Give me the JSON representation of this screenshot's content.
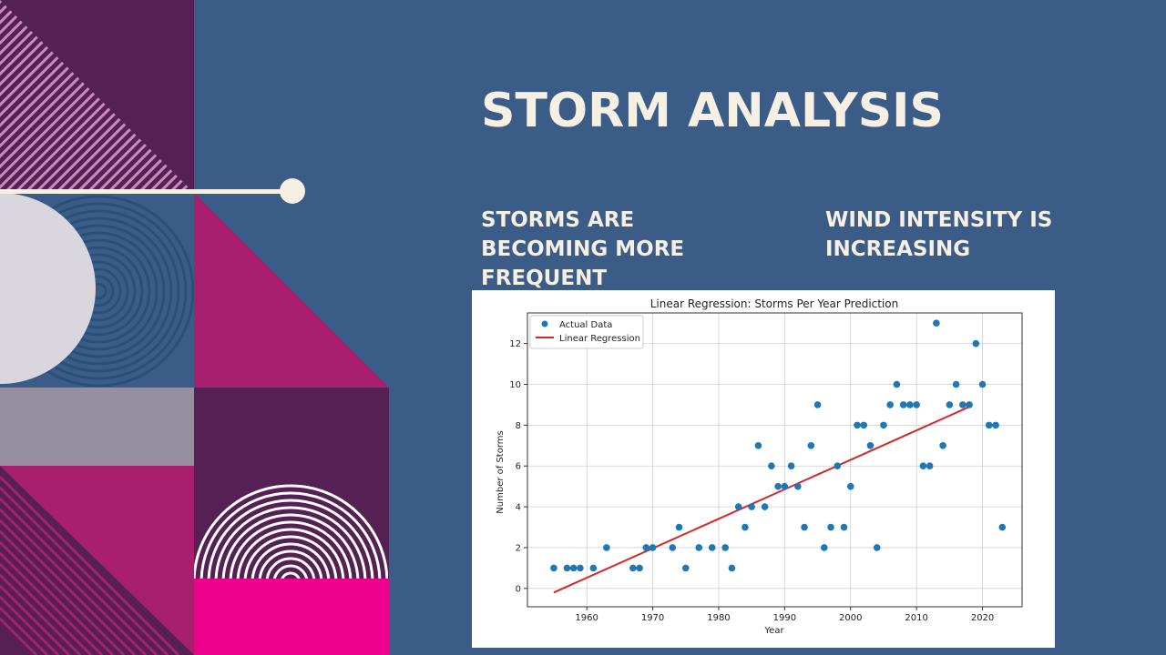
{
  "slide": {
    "title": "STORM ANALYSIS",
    "bullet_left": "STORMS ARE BECOMING MORE FREQUENT",
    "bullet_right": "WIND INTENSITY IS INCREASING"
  },
  "colors": {
    "background": "#3a5c87",
    "text": "#f6efe4",
    "points": "#1f77b4",
    "regression": "#d62728",
    "deco_purple": "#552054",
    "deco_magenta": "#a8206d",
    "deco_pink": "#ec008c",
    "deco_gray": "#968fa1",
    "deco_light": "#d9d6de"
  },
  "chart_data": {
    "type": "scatter",
    "title": "Linear Regression: Storms Per Year Prediction",
    "xlabel": "Year",
    "ylabel": "Number of Storms",
    "xlim": [
      1951,
      2026
    ],
    "ylim": [
      -0.9,
      13.5
    ],
    "xticks": [
      1960,
      1970,
      1980,
      1990,
      2000,
      2010,
      2020
    ],
    "yticks": [
      0,
      2,
      4,
      6,
      8,
      10,
      12
    ],
    "grid": true,
    "legend": {
      "placement": "top-left",
      "entries": [
        "Actual Data",
        "Linear Regression"
      ]
    },
    "series": [
      {
        "name": "Actual Data",
        "type": "scatter",
        "points": [
          [
            1955,
            1
          ],
          [
            1957,
            1
          ],
          [
            1958,
            1
          ],
          [
            1959,
            1
          ],
          [
            1961,
            1
          ],
          [
            1963,
            2
          ],
          [
            1967,
            1
          ],
          [
            1968,
            1
          ],
          [
            1969,
            2
          ],
          [
            1970,
            2
          ],
          [
            1973,
            2
          ],
          [
            1974,
            3
          ],
          [
            1975,
            1
          ],
          [
            1977,
            2
          ],
          [
            1979,
            2
          ],
          [
            1981,
            2
          ],
          [
            1982,
            1
          ],
          [
            1983,
            4
          ],
          [
            1984,
            3
          ],
          [
            1985,
            4
          ],
          [
            1986,
            7
          ],
          [
            1987,
            4
          ],
          [
            1988,
            6
          ],
          [
            1989,
            5
          ],
          [
            1990,
            5
          ],
          [
            1991,
            6
          ],
          [
            1992,
            5
          ],
          [
            1993,
            3
          ],
          [
            1994,
            7
          ],
          [
            1995,
            9
          ],
          [
            1996,
            2
          ],
          [
            1997,
            3
          ],
          [
            1998,
            6
          ],
          [
            1999,
            3
          ],
          [
            2000,
            5
          ],
          [
            2001,
            8
          ],
          [
            2002,
            8
          ],
          [
            2003,
            7
          ],
          [
            2004,
            2
          ],
          [
            2005,
            8
          ],
          [
            2006,
            9
          ],
          [
            2007,
            10
          ],
          [
            2008,
            9
          ],
          [
            2009,
            9
          ],
          [
            2010,
            9
          ],
          [
            2011,
            6
          ],
          [
            2012,
            6
          ],
          [
            2013,
            13
          ],
          [
            2014,
            7
          ],
          [
            2015,
            9
          ],
          [
            2016,
            10
          ],
          [
            2017,
            9
          ],
          [
            2018,
            9
          ],
          [
            2019,
            12
          ],
          [
            2020,
            10
          ],
          [
            2021,
            8
          ],
          [
            2022,
            8
          ],
          [
            2023,
            3
          ]
        ]
      },
      {
        "name": "Linear Regression",
        "type": "line",
        "points": [
          [
            1955,
            -0.2
          ],
          [
            2018,
            8.9
          ]
        ]
      }
    ]
  }
}
